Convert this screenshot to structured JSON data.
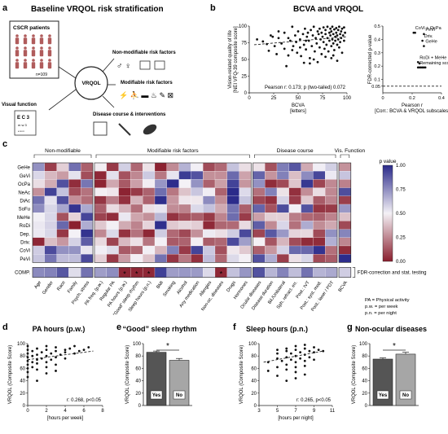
{
  "panels": {
    "a": {
      "letter": "a",
      "title": "Baseline VRQOL risk stratification",
      "cscr": "CSCR patients",
      "n": "n=109",
      "center": "VRQOL",
      "nonmod": "Non-modifiable risk factors",
      "mod": "Modifiable risk factors",
      "visual": "Visual function",
      "disease": "Disease course & interventions"
    },
    "b": {
      "letter": "b",
      "title": "BCVA and VRQOL"
    },
    "c": {
      "letter": "c"
    },
    "d": {
      "letter": "d",
      "title": "PA hours (p.w.)"
    },
    "e": {
      "letter": "e",
      "title": "“Good” sleep rhythm"
    },
    "f": {
      "letter": "f",
      "title": "Sleep hours (p.n.)"
    },
    "g": {
      "letter": "g",
      "title": "Non-ocular diseases"
    }
  },
  "heatmap": {
    "rows": [
      "GeHe",
      "GeVi",
      "OcPa",
      "NeAc",
      "DiAc",
      "SoFu",
      "MeHe",
      "RoDi",
      "Dep.",
      "Driv.",
      "CoVi",
      "PeVi"
    ],
    "comp_row": "COMP.",
    "columns": [
      "Age",
      "Gender",
      "Race",
      "Family",
      "Psych. stress",
      "PA freq. (p.w.)",
      "Regular PA",
      "PA hours (p.w.)",
      "“Good” sleep rhythm",
      "Sleep hours (p.n.)",
      "BMI",
      "Smoking",
      "Alcohol",
      "Any medication",
      "Allergies",
      "Non-oc. diseases",
      "Drugs",
      "Hormones",
      "Ocular diseases",
      "Disease duration",
      "Bil./Unilateral",
      "Sph. refract. err.",
      "Post.: IVT",
      "Post.: syst. med.",
      "Post.: laser / PDT",
      "BCVA"
    ],
    "groups": [
      "Non-modifiable",
      "Modifiable risk factors",
      "Disease course",
      "Vis. Function"
    ],
    "legend_title": "p value",
    "legend_ticks": [
      "1.00",
      "0.75",
      "0.50",
      "0.25",
      "0.00"
    ],
    "fdr_note": "FDR-correction and stat. testing",
    "star": "*",
    "abbrev": [
      "PA = Physical activity",
      "p.w. = per week",
      "p.n. = per night"
    ]
  },
  "chart_data": [
    {
      "panel": "b-left",
      "type": "scatter",
      "title": "BCVA and VRQOL",
      "xlabel": "BCVA\n[letters]",
      "ylabel": "Vision-related quality of life\n[NEI VFQ-39 composite score]",
      "xlim": [
        0,
        100
      ],
      "ylim": [
        0,
        100
      ],
      "xticks": [
        0,
        25,
        50,
        75,
        100
      ],
      "yticks": [
        0,
        25,
        50,
        75,
        100
      ],
      "annotation": "Pearson r: 0.173; p (two-tailed) 0.072",
      "trend": {
        "x": [
          5,
          100
        ],
        "y": [
          72,
          84
        ]
      },
      "points": [
        [
          8,
          80
        ],
        [
          14,
          77
        ],
        [
          18,
          73
        ],
        [
          20,
          63
        ],
        [
          22,
          86
        ],
        [
          24,
          84
        ],
        [
          28,
          58
        ],
        [
          30,
          92
        ],
        [
          33,
          74
        ],
        [
          36,
          66
        ],
        [
          38,
          40
        ],
        [
          40,
          82
        ],
        [
          42,
          78
        ],
        [
          44,
          99
        ],
        [
          45,
          70
        ],
        [
          47,
          86
        ],
        [
          49,
          60
        ],
        [
          50,
          92
        ],
        [
          52,
          80
        ],
        [
          53,
          55
        ],
        [
          55,
          88
        ],
        [
          56,
          72
        ],
        [
          57,
          96
        ],
        [
          58,
          65
        ],
        [
          59,
          84
        ],
        [
          60,
          90
        ],
        [
          61,
          78
        ],
        [
          62,
          52
        ],
        [
          63,
          94
        ],
        [
          64,
          70
        ],
        [
          65,
          86
        ],
        [
          66,
          99
        ],
        [
          67,
          62
        ],
        [
          68,
          82
        ],
        [
          69,
          74
        ],
        [
          70,
          92
        ],
        [
          71,
          88
        ],
        [
          72,
          68
        ],
        [
          72,
          96
        ],
        [
          73,
          80
        ],
        [
          74,
          58
        ],
        [
          74,
          90
        ],
        [
          75,
          84
        ],
        [
          76,
          76
        ],
        [
          76,
          98
        ],
        [
          77,
          66
        ],
        [
          78,
          88
        ],
        [
          78,
          94
        ],
        [
          79,
          72
        ],
        [
          80,
          82
        ],
        [
          80,
          99
        ],
        [
          81,
          62
        ],
        [
          82,
          90
        ],
        [
          82,
          78
        ],
        [
          83,
          86
        ],
        [
          83,
          96
        ],
        [
          84,
          70
        ],
        [
          84,
          92
        ],
        [
          85,
          80
        ],
        [
          85,
          99
        ],
        [
          86,
          74
        ],
        [
          86,
          88
        ],
        [
          87,
          64
        ],
        [
          87,
          95
        ],
        [
          88,
          84
        ],
        [
          88,
          78
        ],
        [
          89,
          90
        ],
        [
          89,
          97
        ],
        [
          90,
          72
        ],
        [
          90,
          86
        ],
        [
          91,
          80
        ],
        [
          91,
          94
        ],
        [
          92,
          68
        ],
        [
          92,
          99
        ],
        [
          93,
          88
        ],
        [
          93,
          76
        ],
        [
          94,
          92
        ],
        [
          94,
          82
        ],
        [
          95,
          60
        ],
        [
          95,
          96
        ],
        [
          96,
          86
        ],
        [
          97,
          78
        ],
        [
          97,
          98
        ],
        [
          98,
          90
        ],
        [
          66,
          50
        ],
        [
          56,
          45
        ],
        [
          78,
          54
        ],
        [
          86,
          56
        ],
        [
          90,
          48
        ],
        [
          70,
          46
        ],
        [
          62,
          44
        ],
        [
          84,
          52
        ],
        [
          52,
          68
        ],
        [
          48,
          76
        ],
        [
          44,
          64
        ],
        [
          36,
          90
        ],
        [
          26,
          70
        ],
        [
          30,
          82
        ],
        [
          40,
          56
        ],
        [
          58,
          78
        ]
      ]
    },
    {
      "panel": "b-right",
      "type": "scatter",
      "ylabel": "FDR-corrected p-value",
      "xlabel": "Pearson r\n[Corr.: BCVA & VRQOL subscales]",
      "xlim": [
        0,
        0.4
      ],
      "ylim": [
        0,
        0.5
      ],
      "xticks": [
        0,
        0.2,
        0.4
      ],
      "yticks": [
        0.05,
        0.1,
        0.2,
        0.3,
        0.4,
        0.5
      ],
      "threshold": 0.05,
      "points": [
        {
          "label": "CoVi + OcPa",
          "x": 0.21,
          "y": 0.45
        },
        {
          "label": "CoVi + OcPa",
          "x": 0.22,
          "y": 0.45
        },
        {
          "label": "PeVi",
          "x": 0.28,
          "y": 0.44
        },
        {
          "label": "Driv.",
          "x": 0.27,
          "y": 0.39
        },
        {
          "label": "GeHe",
          "x": 0.28,
          "y": 0.35
        },
        {
          "label": "RoDi + MeHe",
          "x": 0.24,
          "y": 0.23
        },
        {
          "label": "RoDi + MeHe",
          "x": 0.25,
          "y": 0.22
        },
        {
          "label": "Remaining scores",
          "x": 0.24,
          "y": 0.19
        },
        {
          "label": "Remaining scores",
          "x": 0.25,
          "y": 0.19
        },
        {
          "label": "Remaining scores",
          "x": 0.26,
          "y": 0.19
        },
        {
          "label": "Remaining scores",
          "x": 0.27,
          "y": 0.19
        },
        {
          "label": "Remaining scores",
          "x": 0.28,
          "y": 0.19
        },
        {
          "label": "Remaining scores",
          "x": 0.29,
          "y": 0.19
        }
      ],
      "labels": [
        {
          "text": "CoVi + OcPa",
          "x": 0.21,
          "y": 0.45
        },
        {
          "text": "PeVi",
          "x": 0.28,
          "y": 0.44
        },
        {
          "text": "Driv.",
          "x": 0.27,
          "y": 0.39
        },
        {
          "text": "GeHe",
          "x": 0.28,
          "y": 0.35
        },
        {
          "text": "RoDi + MeHe",
          "x": 0.24,
          "y": 0.23
        },
        {
          "text": "Remaining scores",
          "x": 0.24,
          "y": 0.19
        }
      ]
    },
    {
      "panel": "d",
      "type": "scatter",
      "title": "PA hours (p.w.)",
      "xlabel": "[hours per week]",
      "ylabel": "VRQOL (Composite Score)",
      "xlim": [
        0,
        8
      ],
      "ylim": [
        0,
        100
      ],
      "xticks": [
        0,
        2,
        4,
        6,
        8
      ],
      "yticks": [
        0,
        20,
        40,
        60,
        80,
        100
      ],
      "annotation": "r: 0.268, p<0.05",
      "trend": {
        "x": [
          0,
          7
        ],
        "y": [
          74,
          88
        ]
      },
      "points": [
        [
          0,
          60
        ],
        [
          0,
          72
        ],
        [
          0,
          78
        ],
        [
          0,
          84
        ],
        [
          0,
          90
        ],
        [
          0,
          66
        ],
        [
          0,
          96
        ],
        [
          0,
          54
        ],
        [
          0.5,
          70
        ],
        [
          0.5,
          80
        ],
        [
          0.5,
          88
        ],
        [
          0.5,
          62
        ],
        [
          1,
          74
        ],
        [
          1,
          82
        ],
        [
          1,
          92
        ],
        [
          1,
          58
        ],
        [
          1,
          68
        ],
        [
          1.5,
          86
        ],
        [
          1.5,
          76
        ],
        [
          2,
          80
        ],
        [
          2,
          90
        ],
        [
          2,
          70
        ],
        [
          2,
          96
        ],
        [
          2,
          62
        ],
        [
          2.5,
          84
        ],
        [
          2.5,
          74
        ],
        [
          3,
          88
        ],
        [
          3,
          78
        ],
        [
          3,
          94
        ],
        [
          3,
          66
        ],
        [
          3.5,
          82
        ],
        [
          4,
          90
        ],
        [
          4,
          86
        ],
        [
          4,
          76
        ],
        [
          4.5,
          92
        ],
        [
          5,
          84
        ],
        [
          5,
          96
        ],
        [
          5.5,
          88
        ],
        [
          6,
          90
        ],
        [
          6.5,
          94
        ],
        [
          1,
          40
        ],
        [
          0,
          46
        ],
        [
          2,
          52
        ],
        [
          3,
          56
        ]
      ]
    },
    {
      "panel": "e",
      "type": "bar",
      "title": "“Good” sleep rhythm",
      "categories": [
        "Yes",
        "No"
      ],
      "values": [
        86,
        73
      ],
      "errors": [
        2,
        3
      ],
      "ylabel": "VRQOL (Composite Score)",
      "ylim": [
        0,
        100
      ],
      "yticks": [
        0,
        20,
        40,
        60,
        80,
        100
      ],
      "significance": "*",
      "colors": [
        "#555555",
        "#a6a6a6"
      ]
    },
    {
      "panel": "f",
      "type": "scatter",
      "title": "Sleep hours (p.n.)",
      "xlabel": "[hours per night]",
      "ylabel": "VRQOL (Composite Score)",
      "xlim": [
        3,
        11
      ],
      "ylim": [
        0,
        100
      ],
      "xticks": [
        3,
        5,
        7,
        9,
        11
      ],
      "yticks": [
        0,
        20,
        40,
        60,
        80,
        100
      ],
      "annotation": "r: 0.265, p<0.05",
      "trend": {
        "x": [
          3.5,
          10
        ],
        "y": [
          70,
          88
        ]
      },
      "points": [
        [
          4,
          70
        ],
        [
          4,
          56
        ],
        [
          5,
          62
        ],
        [
          5,
          76
        ],
        [
          5,
          84
        ],
        [
          5,
          48
        ],
        [
          5.5,
          72
        ],
        [
          6,
          66
        ],
        [
          6,
          78
        ],
        [
          6,
          88
        ],
        [
          6,
          58
        ],
        [
          6,
          92
        ],
        [
          6.5,
          74
        ],
        [
          6.5,
          84
        ],
        [
          7,
          70
        ],
        [
          7,
          80
        ],
        [
          7,
          90
        ],
        [
          7,
          62
        ],
        [
          7,
          96
        ],
        [
          7,
          54
        ],
        [
          7.5,
          86
        ],
        [
          7.5,
          76
        ],
        [
          8,
          82
        ],
        [
          8,
          92
        ],
        [
          8,
          72
        ],
        [
          8,
          64
        ],
        [
          8,
          98
        ],
        [
          8.5,
          88
        ],
        [
          8.5,
          78
        ],
        [
          9,
          86
        ],
        [
          9,
          94
        ],
        [
          9,
          74
        ],
        [
          9.5,
          90
        ],
        [
          10,
          88
        ],
        [
          6,
          40
        ],
        [
          7,
          44
        ],
        [
          8,
          50
        ],
        [
          5,
          90
        ]
      ]
    },
    {
      "panel": "g",
      "type": "bar",
      "title": "Non-ocular diseases",
      "categories": [
        "Yes",
        "No"
      ],
      "values": [
        75,
        83
      ],
      "errors": [
        2,
        3
      ],
      "ylabel": "VRQOL (Composite Score)",
      "ylim": [
        0,
        100
      ],
      "yticks": [
        0,
        20,
        40,
        60,
        80,
        100
      ],
      "significance": "*",
      "colors": [
        "#555555",
        "#a6a6a6"
      ]
    }
  ]
}
